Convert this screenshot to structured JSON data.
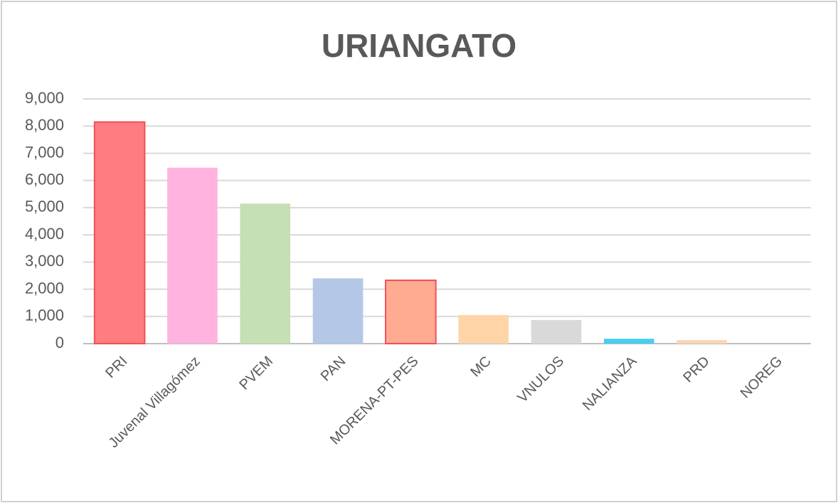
{
  "chart_data": {
    "type": "bar",
    "title": "URIANGATO",
    "categories": [
      "PRI",
      "Juvenal Villagómez",
      "PVEM",
      "PAN",
      "MORENA-PT-PES",
      "MC",
      "VNULOS",
      "NALIANZA",
      "PRD",
      "NOREG"
    ],
    "values": [
      8150,
      6470,
      5150,
      2400,
      2330,
      1050,
      870,
      180,
      130,
      0
    ],
    "colors": [
      "#ff7c80",
      "#ffb3de",
      "#c5e0b4",
      "#b4c7e7",
      "#ffab91",
      "#ffd5a8",
      "#d9d9d9",
      "#48cff0",
      "#fbd5b5",
      "#cccccc"
    ],
    "edge_colors": [
      "#f24f57",
      null,
      null,
      null,
      "#f24f57",
      null,
      null,
      null,
      null,
      null
    ],
    "ylim": [
      0,
      9000
    ],
    "yticks": [
      0,
      {
        "value": 1000,
        "label": "1,000"
      },
      {
        "value": 2000,
        "label": "2,000"
      },
      {
        "value": 3000,
        "label": "3,000"
      },
      {
        "value": 4000,
        "label": "4,000"
      },
      {
        "value": 5000,
        "label": "5,000"
      },
      {
        "value": 6000,
        "label": "6,000"
      },
      {
        "value": 7000,
        "label": "7,000"
      },
      {
        "value": 8000,
        "label": "8,000"
      },
      {
        "value": 9000,
        "label": "9,000"
      }
    ],
    "grid": true
  }
}
